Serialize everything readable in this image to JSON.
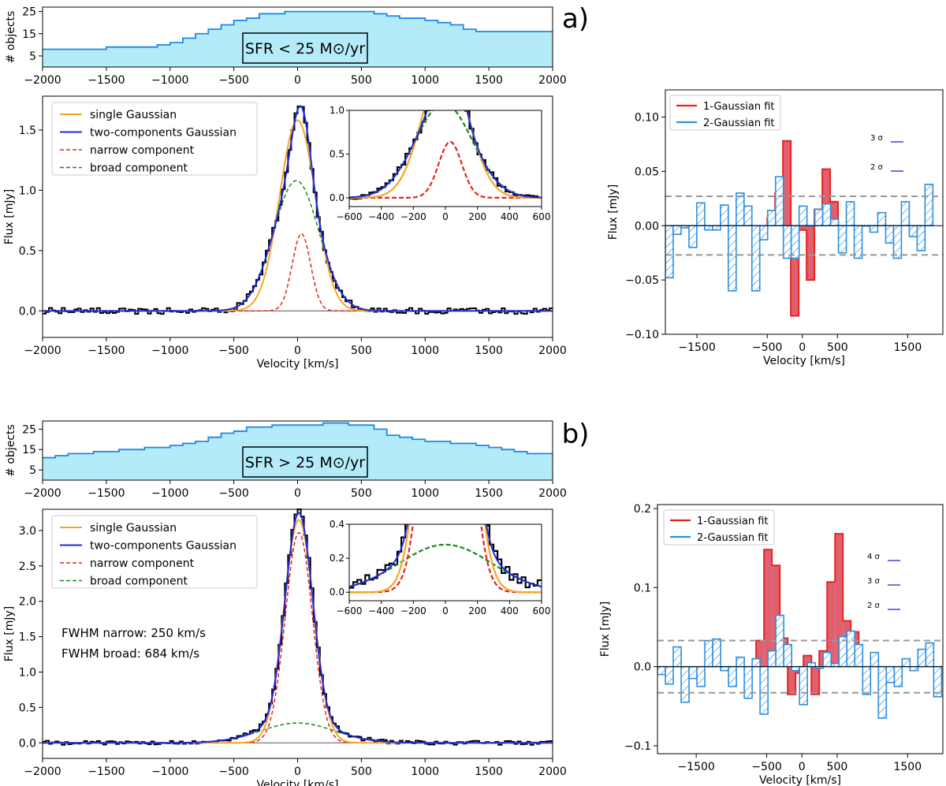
{
  "panel_labels": {
    "a": "a)",
    "b": "b)"
  },
  "colors": {
    "histogram_fill": "#b3ecf8",
    "histogram_line": "#1e88e5",
    "single": "#f5a623",
    "two": "#1f2ad6",
    "narrow": "#e8231c",
    "broad": "#1a8a1a",
    "data": "#000000",
    "one_fit": "#e8231c",
    "one_fit_fill": "#e06070",
    "two_fit": "#2b8fe0",
    "threshold": "#999999",
    "sigma_tick": "#1f2ad6"
  },
  "axis_labels": {
    "hist_y": "# objects",
    "flux_y": "Flux [mJy]",
    "velocity_x": "Velocity [km/s]"
  },
  "chart_data": [
    {
      "id": "a_hist",
      "type": "area",
      "title": "SFR < 25 M⊙/yr",
      "ylabel": "# objects",
      "xlim": [
        -2000,
        2000
      ],
      "ylim": [
        0,
        27
      ],
      "xticks": [
        -2000,
        -1500,
        -1000,
        -500,
        0,
        500,
        1000,
        1500,
        2000
      ],
      "yticks": [
        5,
        15,
        25
      ],
      "x": [
        -2000,
        -1700,
        -1500,
        -1100,
        -1000,
        -900,
        -800,
        -700,
        -600,
        -500,
        -400,
        -300,
        -200,
        -100,
        0,
        100,
        200,
        300,
        400,
        500,
        600,
        700,
        800,
        900,
        1000,
        1100,
        1200,
        1300,
        1400,
        1500,
        1600,
        1700,
        1800,
        1900,
        2000
      ],
      "values": [
        8,
        8,
        9,
        10,
        11,
        13,
        15,
        17,
        19,
        21,
        22,
        24,
        24,
        25,
        25,
        25,
        25,
        25,
        25,
        25,
        24,
        23,
        22,
        22,
        21,
        20,
        19,
        17,
        16,
        16,
        16,
        16,
        16,
        16,
        16
      ]
    },
    {
      "id": "a_spec",
      "type": "line",
      "ylabel": "Flux [mJy]",
      "xlabel": "Velocity [km/s]",
      "xlim": [
        -2000,
        2000
      ],
      "ylim": [
        -0.22,
        1.78
      ],
      "xticks": [
        -2000,
        -1500,
        -1000,
        -500,
        0,
        500,
        1000,
        1500,
        2000
      ],
      "yticks": [
        0.0,
        0.5,
        1.0,
        1.5
      ],
      "legend": [
        "single Gaussian",
        "two-components Gaussian",
        "narrow component",
        "broad component"
      ],
      "series": [
        {
          "name": "single Gaussian",
          "amp": 1.58,
          "center": 0,
          "fwhm": 330
        },
        {
          "name": "narrow component",
          "amp": 0.64,
          "center": 30,
          "fwhm": 170
        },
        {
          "name": "broad component",
          "amp": 1.08,
          "center": -10,
          "fwhm": 420
        },
        {
          "name": "two-components Gaussian",
          "sum_of": [
            "narrow component",
            "broad component"
          ]
        }
      ],
      "inset": {
        "xlim": [
          -600,
          600
        ],
        "ylim": [
          -0.1,
          1.0
        ],
        "xticks": [
          -600,
          -400,
          -200,
          0,
          200,
          400,
          600
        ],
        "yticks": [
          0.0,
          0.5,
          1.0
        ]
      }
    },
    {
      "id": "a_resid",
      "type": "bar",
      "ylabel": "Flux [mJy]",
      "xlabel": "Velocity [km/s]",
      "xlim": [
        -1950,
        2000
      ],
      "ylim": [
        -0.1,
        0.125
      ],
      "xticks": [
        -1500,
        -500,
        0,
        500,
        1500
      ],
      "yticks": [
        -0.1,
        -0.05,
        0.0,
        0.05,
        0.1
      ],
      "threshold": 0.027,
      "legend": [
        "1-Gaussian fit",
        "2-Gaussian fit"
      ],
      "sigma_labels": [
        "3 σ",
        "2 σ"
      ],
      "bin_width": 112,
      "bin_start": -1950,
      "series": [
        {
          "name": "2-Gaussian fit",
          "values": [
            -0.048,
            -0.008,
            -0.002,
            -0.02,
            0.021,
            -0.004,
            -0.004,
            0.019,
            -0.06,
            0.03,
            0.018,
            -0.06,
            -0.013,
            0.014,
            0.045,
            -0.03,
            -0.03,
            0.018,
            0.0,
            0.015,
            0.02,
            0.006,
            -0.025,
            0.022,
            -0.03,
            0.0,
            -0.006,
            0.012,
            -0.016,
            -0.03,
            0.022,
            -0.01,
            -0.023,
            0.038
          ]
        },
        {
          "name": "1-Gaussian fit",
          "start": -500,
          "values": [
            0.007,
            0.03,
            0.078,
            -0.083,
            -0.004,
            -0.05,
            0.015,
            0.052,
            0.022
          ]
        }
      ]
    },
    {
      "id": "b_hist",
      "type": "area",
      "title": "SFR > 25 M⊙/yr",
      "ylabel": "# objects",
      "xlim": [
        -2000,
        2000
      ],
      "ylim": [
        0,
        29
      ],
      "xticks": [
        -2000,
        -1500,
        -1000,
        -500,
        0,
        500,
        1000,
        1500,
        2000
      ],
      "yticks": [
        5,
        15,
        25
      ],
      "x": [
        -2000,
        -1900,
        -1800,
        -1600,
        -1400,
        -1200,
        -1000,
        -900,
        -800,
        -700,
        -600,
        -500,
        -400,
        -300,
        -200,
        -100,
        0,
        100,
        200,
        300,
        400,
        500,
        600,
        700,
        800,
        900,
        1000,
        1100,
        1200,
        1300,
        1400,
        1500,
        1600,
        1700,
        1800,
        1900,
        2000
      ],
      "values": [
        11,
        12,
        13,
        14,
        15,
        16,
        17,
        18,
        19,
        21,
        23,
        24,
        26,
        26,
        27,
        27,
        27,
        27,
        28,
        28,
        27,
        27,
        25,
        22,
        21,
        20,
        19,
        19,
        18,
        18,
        17,
        16,
        15,
        14,
        13,
        13,
        13
      ]
    },
    {
      "id": "b_spec",
      "type": "line",
      "ylabel": "Flux [mJy]",
      "xlabel": "Velocity [km/s]",
      "xlim": [
        -2000,
        2000
      ],
      "ylim": [
        -0.22,
        3.3
      ],
      "xticks": [
        -2000,
        -1500,
        -1000,
        -500,
        0,
        500,
        1000,
        1500,
        2000
      ],
      "yticks": [
        0.0,
        0.5,
        1.0,
        1.5,
        2.0,
        2.5,
        3.0
      ],
      "legend": [
        "single Gaussian",
        "two-components Gaussian",
        "narrow component",
        "broad component"
      ],
      "annotations": [
        "FWHM narrow: 250 km/s",
        "FWHM broad: 684 km/s"
      ],
      "series": [
        {
          "name": "single Gaussian",
          "amp": 3.15,
          "center": 10,
          "fwhm": 275
        },
        {
          "name": "narrow component",
          "amp": 2.97,
          "center": 10,
          "fwhm": 250
        },
        {
          "name": "broad component",
          "amp": 0.28,
          "center": 0,
          "fwhm": 684
        },
        {
          "name": "two-components Gaussian",
          "sum_of": [
            "narrow component",
            "broad component"
          ]
        }
      ],
      "inset": {
        "xlim": [
          -600,
          600
        ],
        "ylim": [
          -0.05,
          0.4
        ],
        "xticks": [
          -600,
          -400,
          -200,
          0,
          200,
          400,
          600
        ],
        "yticks": [
          0.0,
          0.2,
          0.4
        ]
      }
    },
    {
      "id": "b_resid",
      "type": "bar",
      "ylabel": "Flux [mJy]",
      "xlabel": "Velocity [km/s]",
      "xlim": [
        -2050,
        2000
      ],
      "ylim": [
        -0.11,
        0.205
      ],
      "xticks": [
        -1500,
        -500,
        0,
        500,
        1500
      ],
      "yticks": [
        -0.1,
        0.0,
        0.1,
        0.2
      ],
      "threshold": 0.033,
      "legend": [
        "1-Gaussian fit",
        "2-Gaussian fit"
      ],
      "sigma_labels": [
        "4 σ",
        "3 σ",
        "2 σ"
      ],
      "bin_width": 112,
      "bin_start": -2050,
      "series": [
        {
          "name": "2-Gaussian fit",
          "values": [
            -0.01,
            -0.022,
            0.025,
            -0.045,
            -0.015,
            -0.025,
            0.033,
            0.035,
            -0.005,
            -0.025,
            0.012,
            -0.04,
            0.01,
            -0.06,
            0.02,
            0.065,
            0.028,
            -0.005,
            -0.048,
            0.005,
            -0.002,
            0.018,
            0.004,
            0.038,
            0.045,
            0.028,
            -0.035,
            0.018,
            -0.065,
            -0.02,
            -0.025,
            0.01,
            -0.005,
            0.022,
            0.03,
            -0.038,
            -0.015
          ]
        },
        {
          "name": "1-Gaussian fit",
          "start": -650,
          "values": [
            0.033,
            0.148,
            0.128,
            0.036,
            -0.035,
            -0.008,
            0.014,
            -0.035,
            0.02,
            0.107,
            0.168,
            0.058,
            0.044
          ]
        }
      ]
    }
  ]
}
